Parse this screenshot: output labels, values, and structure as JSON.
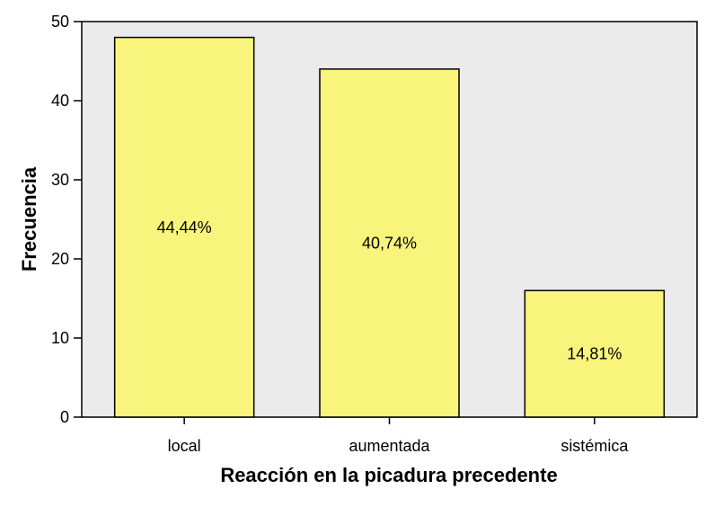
{
  "chart_data": {
    "type": "bar",
    "categories": [
      "local",
      "aumentada",
      "sistémica"
    ],
    "values": [
      48,
      44,
      16
    ],
    "data_labels": [
      "44,44%",
      "40,74%",
      "14,81%"
    ],
    "title": "",
    "xlabel": "Reacción en la picadura precedente",
    "ylabel": "Frecuencia",
    "ylim": [
      0,
      50
    ],
    "yticks": [
      0,
      10,
      20,
      30,
      40,
      50
    ],
    "grid": false,
    "colors": {
      "bar_fill": "#f8f47c",
      "bar_stroke": "#000000",
      "plot_background": "#ebebeb",
      "axis": "#000000"
    }
  }
}
